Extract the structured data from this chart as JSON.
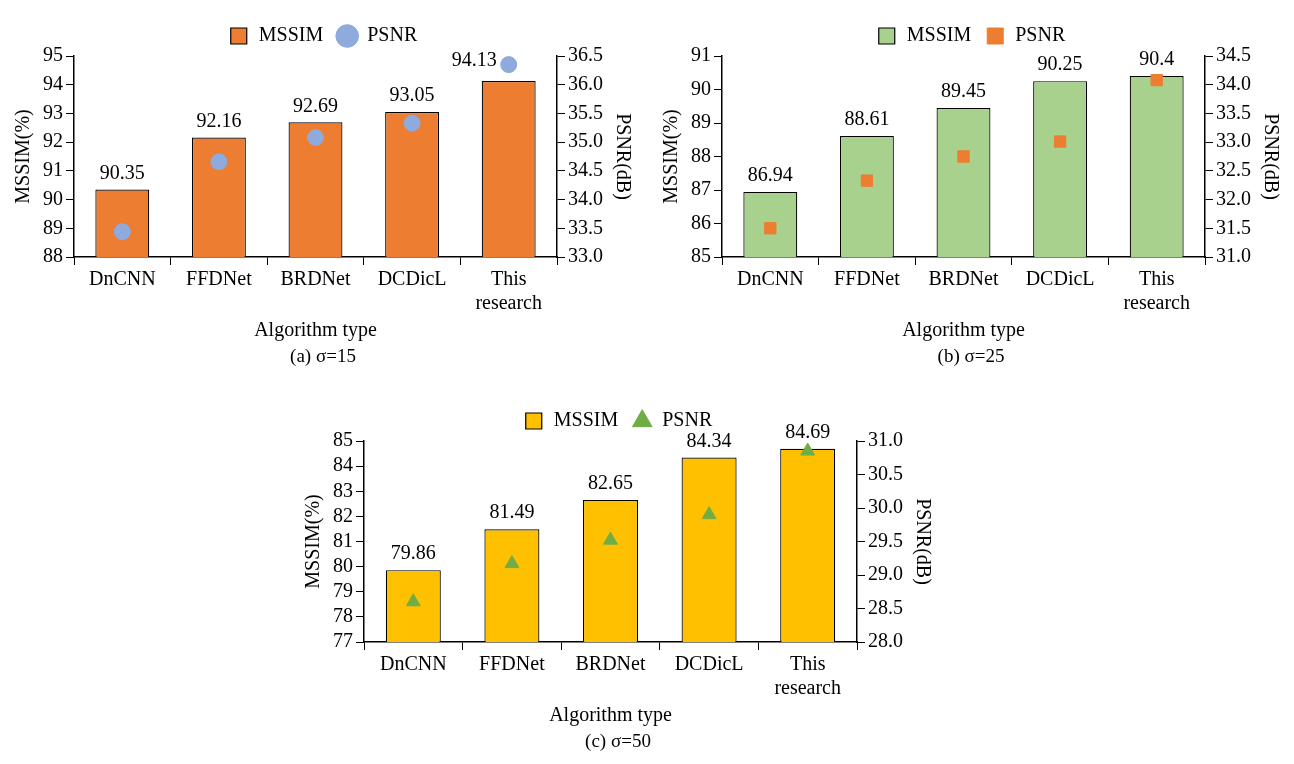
{
  "chart_data": [
    {
      "type": "bar",
      "xlabel": "Algorithm type",
      "ylabel": "MSSIM(%)",
      "y2label": "PSNR(dB)",
      "categories": [
        "DnCNN",
        "FFDNet",
        "BRDNet",
        "DCDicL",
        "This research"
      ],
      "ylim": [
        88,
        95
      ],
      "yticks": [
        88,
        89,
        90,
        91,
        92,
        93,
        94,
        95
      ],
      "y2lim": [
        33.0,
        36.5
      ],
      "y2ticks": [
        {
          "value": 33,
          "label": "33.0"
        },
        {
          "value": 33.5,
          "label": "33.5"
        },
        {
          "value": 34,
          "label": "34.0"
        },
        {
          "value": 34.5,
          "label": "34.5"
        },
        {
          "value": 35,
          "label": "35.0"
        },
        {
          "value": 35.5,
          "label": "35.5"
        },
        {
          "value": 36,
          "label": "36.0"
        },
        {
          "value": 36.5,
          "label": "36.5"
        }
      ],
      "legend": "top",
      "marker": "circle",
      "annotations": [
        "(a) σ=15"
      ],
      "series": [
        {
          "name": "MSSIM",
          "color": "#ed7d31",
          "values": [
            90.35,
            92.16,
            92.69,
            93.05,
            94.13
          ],
          "value_labels": [
            "90.35",
            "92.16",
            "92.69",
            "93.05",
            "94.13"
          ]
        },
        {
          "name": "PSNR",
          "type": "scatter",
          "axis": "y2",
          "color": "#8faadc",
          "x": [
            "DnCNN",
            "FFDNet",
            "BRDNet",
            "DCDicL",
            "This research"
          ],
          "values": [
            33.44,
            34.66,
            35.08,
            35.33,
            36.35
          ]
        }
      ]
    },
    {
      "type": "bar",
      "xlabel": "Algorithm type",
      "ylabel": "MSSIM(%)",
      "y2label": "PSNR(dB)",
      "categories": [
        "DnCNN",
        "FFDNet",
        "BRDNet",
        "DCDicL",
        "This research"
      ],
      "ylim": [
        85,
        91
      ],
      "yticks": [
        85,
        86,
        87,
        88,
        89,
        90,
        91
      ],
      "y2lim": [
        31.0,
        34.5
      ],
      "y2ticks": [
        {
          "value": 31,
          "label": "31.0"
        },
        {
          "value": 31.5,
          "label": "31.5"
        },
        {
          "value": 32,
          "label": "32.0"
        },
        {
          "value": 32.5,
          "label": "32.5"
        },
        {
          "value": 33,
          "label": "33.0"
        },
        {
          "value": 33.5,
          "label": "33.5"
        },
        {
          "value": 34,
          "label": "34.0"
        },
        {
          "value": 34.5,
          "label": "34.5"
        }
      ],
      "legend": "top",
      "marker": "square",
      "annotations": [
        "(b) σ=25"
      ],
      "series": [
        {
          "name": "MSSIM",
          "color": "#a9d18e",
          "values": [
            86.94,
            88.61,
            89.45,
            90.25,
            90.4
          ],
          "value_labels": [
            "86.94",
            "88.61",
            "89.45",
            "90.25",
            "90.4"
          ]
        },
        {
          "name": "PSNR",
          "type": "scatter",
          "axis": "y2",
          "color": "#ed7d31",
          "x": [
            "DnCNN",
            "FFDNet",
            "BRDNet",
            "DCDicL",
            "This research"
          ],
          "values": [
            31.5,
            32.33,
            32.75,
            33.01,
            34.08
          ]
        }
      ]
    },
    {
      "type": "bar",
      "xlabel": "Algorithm type",
      "ylabel": "MSSIM(%)",
      "y2label": "PSNR(dB)",
      "categories": [
        "DnCNN",
        "FFDNet",
        "BRDNet",
        "DCDicL",
        "This research"
      ],
      "ylim": [
        77,
        85
      ],
      "yticks": [
        77,
        78,
        79,
        80,
        81,
        82,
        83,
        84,
        85
      ],
      "y2lim": [
        28.0,
        31.0
      ],
      "y2ticks": [
        {
          "value": 28,
          "label": "28.0"
        },
        {
          "value": 28.5,
          "label": "28.5"
        },
        {
          "value": 29,
          "label": "29.0"
        },
        {
          "value": 29.5,
          "label": "29.5"
        },
        {
          "value": 30,
          "label": "30.0"
        },
        {
          "value": 30.5,
          "label": "30.5"
        },
        {
          "value": 31,
          "label": "31.0"
        }
      ],
      "legend": "top",
      "marker": "triangle",
      "annotations": [
        "(c) σ=50"
      ],
      "series": [
        {
          "name": "MSSIM",
          "color": "#ffc000",
          "values": [
            79.86,
            81.49,
            82.65,
            84.34,
            84.69
          ],
          "value_labels": [
            "79.86",
            "81.49",
            "82.65",
            "84.34",
            "84.69"
          ]
        },
        {
          "name": "PSNR",
          "type": "scatter",
          "axis": "y2",
          "color": "#70ad47",
          "x": [
            "DnCNN",
            "FFDNet",
            "BRDNet",
            "DCDicL",
            "This research"
          ],
          "values": [
            28.6,
            29.17,
            29.52,
            29.9,
            30.85
          ]
        }
      ]
    }
  ]
}
